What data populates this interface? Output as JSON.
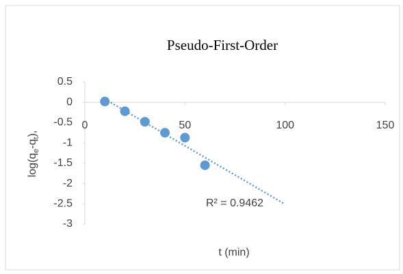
{
  "chart_data": {
    "type": "scatter",
    "title": "Pseudo-First-Order",
    "xlabel": "t (min)",
    "ylabel_parts": [
      "log(q",
      "e",
      "-q",
      "t",
      "),"
    ],
    "series": [
      {
        "color": "#5b9bd5",
        "x": [
          10,
          20,
          30,
          40,
          50,
          60
        ],
        "values": [
          0.02,
          -0.22,
          -0.48,
          -0.75,
          -0.87,
          -1.55
        ]
      }
    ],
    "trendline": {
      "x": [
        10,
        100
      ],
      "y": [
        0.08,
        -2.51
      ],
      "color": "#5b9bd5",
      "style": "dotted"
    },
    "annotation": "R² = 0.9462",
    "xlim": [
      0,
      150
    ],
    "xticks": [
      0,
      50,
      100,
      150
    ],
    "ylim": [
      -3,
      0.5
    ],
    "yticks": [
      0.5,
      0,
      -0.5,
      -1,
      -1.5,
      -2,
      -2.5,
      -3
    ],
    "grid": false
  }
}
